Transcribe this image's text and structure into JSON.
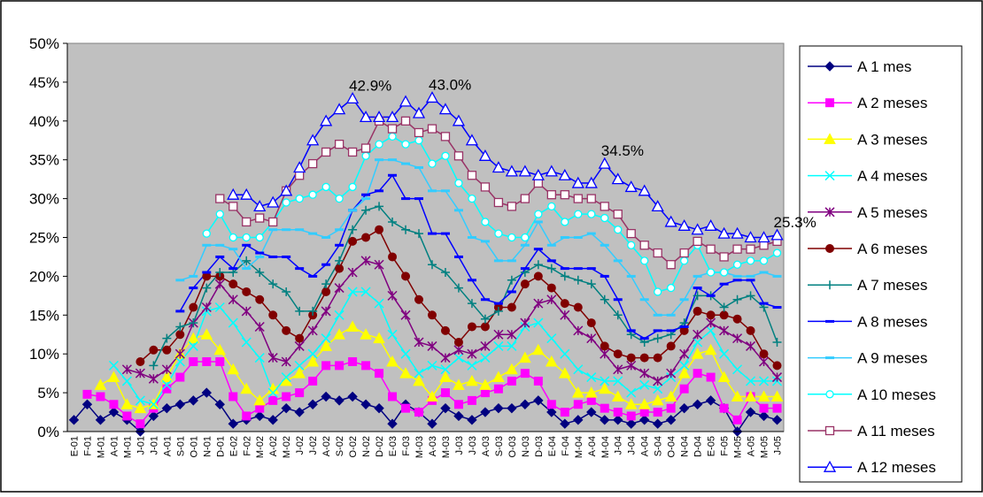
{
  "chart_data": {
    "type": "line",
    "categories": [
      "E-01",
      "F-01",
      "M-01",
      "A-01",
      "M-01",
      "J-01",
      "J-01",
      "A-01",
      "S-01",
      "O-01",
      "N-01",
      "D-01",
      "E-02",
      "F-02",
      "M-02",
      "A-02",
      "M-02",
      "J-02",
      "J-02",
      "A-02",
      "S-02",
      "O-02",
      "N-02",
      "D-02",
      "E-03",
      "F-03",
      "M-03",
      "A-03",
      "M-03",
      "J-03",
      "J-03",
      "A-03",
      "S-03",
      "O-03",
      "N-03",
      "D-03",
      "E-04",
      "F-04",
      "M-04",
      "A-04",
      "M-04",
      "J-04",
      "J-04",
      "A-04",
      "S-04",
      "O-04",
      "N-04",
      "D-04",
      "E-05",
      "F-05",
      "M-05",
      "A-05",
      "M-05",
      "J-05"
    ],
    "ylim": [
      0,
      50
    ],
    "yticks": [
      {
        "value": 0,
        "label": "0%"
      },
      {
        "value": 5,
        "label": "5%"
      },
      {
        "value": 10,
        "label": "10%"
      },
      {
        "value": 15,
        "label": "15%"
      },
      {
        "value": 20,
        "label": "20%"
      },
      {
        "value": 25,
        "label": "25%"
      },
      {
        "value": 30,
        "label": "30%"
      },
      {
        "value": 35,
        "label": "35%"
      },
      {
        "value": 40,
        "label": "40%"
      },
      {
        "value": 45,
        "label": "45%"
      },
      {
        "value": 50,
        "label": "50%"
      }
    ],
    "grid": false,
    "legend": "right",
    "series": [
      {
        "name": "A 1 mes",
        "color": "#000080",
        "marker": "diamond",
        "values": [
          1.5,
          3.5,
          1.5,
          2.5,
          1.5,
          0,
          2,
          3,
          3.5,
          4,
          5,
          3.5,
          1,
          1.5,
          2,
          1.5,
          3,
          2.5,
          3.5,
          4.5,
          4,
          4.5,
          3.5,
          3,
          1,
          3.5,
          2.5,
          1,
          3,
          2,
          1.5,
          2.5,
          3,
          3,
          3.5,
          4,
          2.5,
          1,
          1.5,
          2.5,
          1.5,
          1.5,
          1,
          1.5,
          1,
          1.5,
          3,
          3.5,
          4,
          3,
          0,
          2.5,
          2,
          1.5
        ]
      },
      {
        "name": "A 2 meses",
        "color": "#FF00FF",
        "marker": "square",
        "values": [
          null,
          4.8,
          4.5,
          3.5,
          2,
          1,
          3,
          5.5,
          7,
          9,
          9,
          9,
          4.5,
          2,
          3,
          4,
          4.5,
          5,
          6.5,
          8.5,
          8.5,
          9,
          8.5,
          7.5,
          4.5,
          3,
          2.5,
          4,
          5,
          3.5,
          4,
          5,
          5.5,
          6.5,
          7.5,
          6.5,
          3.5,
          2.5,
          3.5,
          4,
          3,
          2.5,
          2,
          2.5,
          2.5,
          3,
          5.5,
          7.5,
          7,
          3,
          1.5,
          4.5,
          3,
          3
        ]
      },
      {
        "name": "A 3 meses",
        "color": "#FFFF00",
        "marker": "triangle",
        "values": [
          null,
          null,
          6,
          7,
          3.5,
          3,
          3.5,
          7,
          10,
          12,
          12.5,
          10.5,
          8,
          5.5,
          4,
          5.5,
          6.5,
          7.5,
          9,
          11,
          12.5,
          13.5,
          12.5,
          12,
          9,
          7.5,
          6.5,
          4.5,
          7,
          6,
          6.5,
          6,
          7,
          8,
          9.5,
          10.5,
          9,
          7.5,
          5,
          5,
          5.5,
          4.5,
          3.5,
          3.5,
          4,
          4.5,
          7.5,
          10,
          10.5,
          7,
          4.5,
          4.5,
          4.5,
          4.5
        ]
      },
      {
        "name": "A 4 meses",
        "color": "#00FFFF",
        "marker": "x",
        "values": [
          null,
          null,
          null,
          8.5,
          6.5,
          4,
          3.5,
          6,
          9,
          11,
          15.5,
          16,
          14,
          11.5,
          9.5,
          5,
          7,
          8.5,
          10,
          12,
          15,
          18,
          18,
          16.5,
          12.5,
          10,
          7.5,
          8.5,
          8,
          9.5,
          8.5,
          9.5,
          11,
          11,
          13.5,
          14,
          12,
          10,
          8,
          7,
          6.5,
          6.5,
          5,
          6,
          5.5,
          7,
          8.5,
          11.5,
          13,
          10,
          8,
          6.5,
          6.5,
          6.5
        ]
      },
      {
        "name": "A 5 meses",
        "color": "#800080",
        "marker": "star",
        "values": [
          null,
          null,
          null,
          null,
          8,
          7.5,
          6.8,
          8,
          10,
          14,
          16,
          19,
          17,
          15.5,
          13.5,
          9.5,
          9,
          11,
          13,
          15.5,
          18.5,
          20.5,
          22,
          21.5,
          17.5,
          15,
          11.5,
          11,
          9.5,
          10.5,
          10,
          11,
          12.5,
          12.5,
          14,
          16.5,
          17,
          15,
          13,
          12,
          10,
          8,
          8.5,
          7.5,
          6.5,
          7.5,
          10,
          12.5,
          14,
          13,
          12,
          11,
          9,
          7
        ]
      },
      {
        "name": "A 6 meses",
        "color": "#800000",
        "marker": "circle",
        "values": [
          null,
          null,
          null,
          null,
          null,
          9,
          10.5,
          10.5,
          12.5,
          16,
          20,
          20,
          19,
          18,
          17,
          15,
          13,
          12,
          15,
          18,
          21,
          24.5,
          25,
          26,
          22.5,
          20,
          17,
          15,
          13,
          11.5,
          13.5,
          13.5,
          16,
          16,
          19,
          20,
          18.5,
          16.5,
          16,
          14,
          11,
          10,
          9.5,
          9.5,
          9.5,
          11,
          13,
          15.5,
          15,
          15,
          14.5,
          13,
          10,
          8.5
        ]
      },
      {
        "name": "A 7 meses",
        "color": "#008080",
        "marker": "plus",
        "values": [
          null,
          null,
          null,
          null,
          null,
          null,
          8.5,
          12,
          13.5,
          14,
          18.5,
          20.5,
          20.5,
          22,
          20.5,
          19,
          18,
          15.5,
          15.5,
          19,
          22,
          26,
          28.5,
          29,
          27,
          26,
          25.5,
          21.5,
          20.5,
          18.5,
          16.5,
          14.5,
          15.5,
          19.5,
          20.5,
          21.5,
          21,
          20,
          19.5,
          19,
          17,
          15,
          12.5,
          11.5,
          12,
          12.5,
          14,
          17.5,
          17.5,
          16,
          17,
          17.5,
          16,
          11.5
        ]
      },
      {
        "name": "A 8 meses",
        "color": "#0000FF",
        "marker": "dash",
        "values": [
          null,
          null,
          null,
          null,
          null,
          null,
          null,
          null,
          15.5,
          18.5,
          20.5,
          22.5,
          21,
          24,
          23,
          22.5,
          22.5,
          21,
          20,
          21.5,
          24,
          28.5,
          30.5,
          31,
          33,
          30,
          30,
          25.5,
          25.5,
          22.5,
          19.5,
          17,
          16.5,
          18,
          21,
          23.5,
          22,
          21,
          21,
          21,
          20,
          17,
          13,
          12,
          13,
          13,
          13.5,
          18.5,
          17.5,
          19,
          19.5,
          19.5,
          16.5,
          16
        ]
      },
      {
        "name": "A 9 meses",
        "color": "#33CCFF",
        "marker": "dash",
        "values": [
          null,
          null,
          null,
          null,
          null,
          null,
          null,
          null,
          19.5,
          20,
          24,
          24,
          23.5,
          21,
          22.5,
          26,
          26,
          26,
          25.5,
          25,
          26,
          28.5,
          30,
          35,
          35,
          34.5,
          34,
          31,
          31,
          28.5,
          25,
          24.5,
          22,
          22,
          24,
          27,
          24,
          25,
          25,
          25.5,
          24,
          22,
          20,
          17,
          15,
          15,
          17,
          20,
          20.5,
          20.5,
          20,
          20,
          20.5,
          20
        ]
      },
      {
        "name": "A 10 meses",
        "color": "#00FFFF",
        "marker": "open-circle",
        "values": [
          null,
          null,
          null,
          null,
          null,
          null,
          null,
          null,
          null,
          null,
          25.5,
          28,
          25,
          25,
          25,
          27,
          29.5,
          30,
          30.5,
          31.5,
          30,
          31.5,
          35.5,
          37,
          38,
          37,
          37.5,
          34.5,
          35.5,
          32,
          30,
          27,
          25.5,
          25,
          25,
          28,
          29,
          27,
          28,
          28,
          27.5,
          26,
          24,
          22,
          18,
          18.5,
          22,
          24,
          20.5,
          20.5,
          21.5,
          22,
          22,
          23
        ]
      },
      {
        "name": "A 11 meses",
        "color": "#993366",
        "marker": "open-square",
        "values": [
          null,
          null,
          null,
          null,
          null,
          null,
          null,
          null,
          null,
          null,
          null,
          30,
          29,
          27,
          27.5,
          27,
          31,
          33,
          34.5,
          36,
          37,
          36,
          36.5,
          40,
          39,
          40,
          38.5,
          39,
          38,
          35.5,
          33,
          31.5,
          29.5,
          29,
          30,
          32,
          30.5,
          30.5,
          30,
          30,
          29,
          28,
          25.5,
          24,
          23,
          21.5,
          23,
          24.5,
          23.5,
          22.5,
          23.5,
          23.5,
          24,
          24.5
        ]
      },
      {
        "name": "A 12 meses",
        "color": "#0000FF",
        "marker": "open-triangle",
        "values": [
          null,
          null,
          null,
          null,
          null,
          null,
          null,
          null,
          null,
          null,
          null,
          null,
          30.5,
          30.5,
          29,
          29.5,
          31,
          34,
          37.5,
          40,
          41.5,
          42.9,
          40.5,
          40.5,
          40.5,
          42.5,
          41,
          43.0,
          41.5,
          40,
          37.5,
          35.5,
          34,
          33.5,
          33.5,
          33,
          33.5,
          33,
          32,
          32,
          34.5,
          32.5,
          31.5,
          31,
          29,
          27,
          26.5,
          26,
          26.5,
          25.5,
          25.5,
          25,
          25,
          25.3
        ],
        "value_labels": [
          null,
          null,
          null,
          null,
          null,
          null,
          null,
          null,
          null,
          null,
          null,
          null,
          null,
          null,
          null,
          null,
          null,
          null,
          null,
          null,
          null,
          "42.9%",
          null,
          null,
          null,
          null,
          null,
          "43.0%",
          null,
          null,
          null,
          null,
          null,
          null,
          null,
          null,
          null,
          null,
          null,
          null,
          "34.5%",
          null,
          null,
          null,
          null,
          null,
          null,
          null,
          null,
          null,
          null,
          null,
          null,
          "25.3%"
        ]
      }
    ]
  }
}
